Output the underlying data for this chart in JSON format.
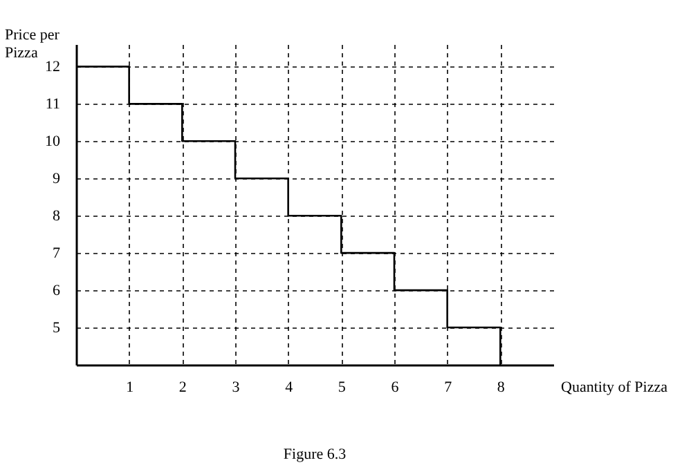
{
  "chart_data": {
    "type": "step",
    "xlabel": "Quantity of Pizza",
    "ylabel": "Price per Pizza",
    "annotations": [
      "Figure 6.3"
    ],
    "x": [
      0,
      1,
      2,
      3,
      4,
      5,
      6,
      7,
      8
    ],
    "series": [
      {
        "color": "#000000",
        "values": [
          12,
          11,
          10,
          9,
          8,
          7,
          6,
          5,
          4
        ]
      }
    ],
    "xlim": [
      0,
      9
    ],
    "xticks": [
      1,
      2,
      3,
      4,
      5,
      6,
      7,
      8
    ],
    "ylim": [
      4,
      12.6
    ],
    "yticks": [
      5,
      6,
      7,
      8,
      9,
      10,
      11,
      12
    ],
    "grid": true,
    "line_style": "solid",
    "marker": "none"
  }
}
